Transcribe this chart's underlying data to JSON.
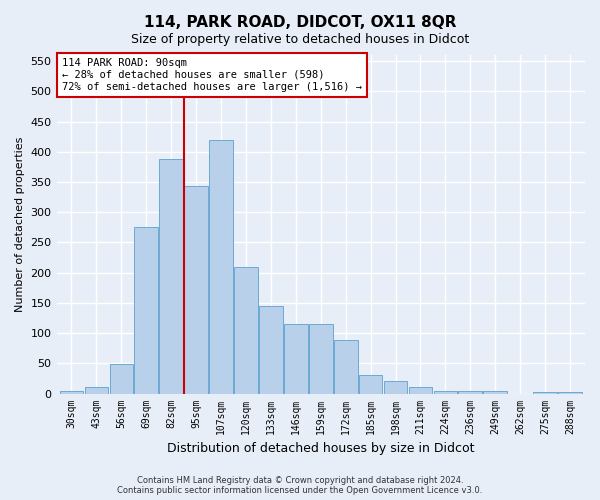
{
  "title": "114, PARK ROAD, DIDCOT, OX11 8QR",
  "subtitle": "Size of property relative to detached houses in Didcot",
  "xlabel": "Distribution of detached houses by size in Didcot",
  "ylabel": "Number of detached properties",
  "categories": [
    "30sqm",
    "43sqm",
    "56sqm",
    "69sqm",
    "82sqm",
    "95sqm",
    "107sqm",
    "120sqm",
    "133sqm",
    "146sqm",
    "159sqm",
    "172sqm",
    "185sqm",
    "198sqm",
    "211sqm",
    "224sqm",
    "236sqm",
    "249sqm",
    "262sqm",
    "275sqm",
    "288sqm"
  ],
  "values": [
    5,
    11,
    49,
    275,
    388,
    344,
    420,
    210,
    144,
    115,
    115,
    89,
    30,
    20,
    11,
    5,
    5,
    5,
    0,
    3,
    3
  ],
  "bar_color": "#b8d0ea",
  "bar_edge_color": "#6aaad4",
  "vline_x_idx": 4.5,
  "vline_color": "#cc0000",
  "annotation_text_line1": "114 PARK ROAD: 90sqm",
  "annotation_text_line2": "← 28% of detached houses are smaller (598)",
  "annotation_text_line3": "72% of semi-detached houses are larger (1,516) →",
  "annotation_box_color": "#ffffff",
  "annotation_box_edge": "#cc0000",
  "ylim": [
    0,
    560
  ],
  "yticks": [
    0,
    50,
    100,
    150,
    200,
    250,
    300,
    350,
    400,
    450,
    500,
    550
  ],
  "footer_line1": "Contains HM Land Registry data © Crown copyright and database right 2024.",
  "footer_line2": "Contains public sector information licensed under the Open Government Licence v3.0.",
  "bg_color": "#e8eef8",
  "plot_bg_color": "#e8eef8",
  "grid_color": "#ffffff"
}
